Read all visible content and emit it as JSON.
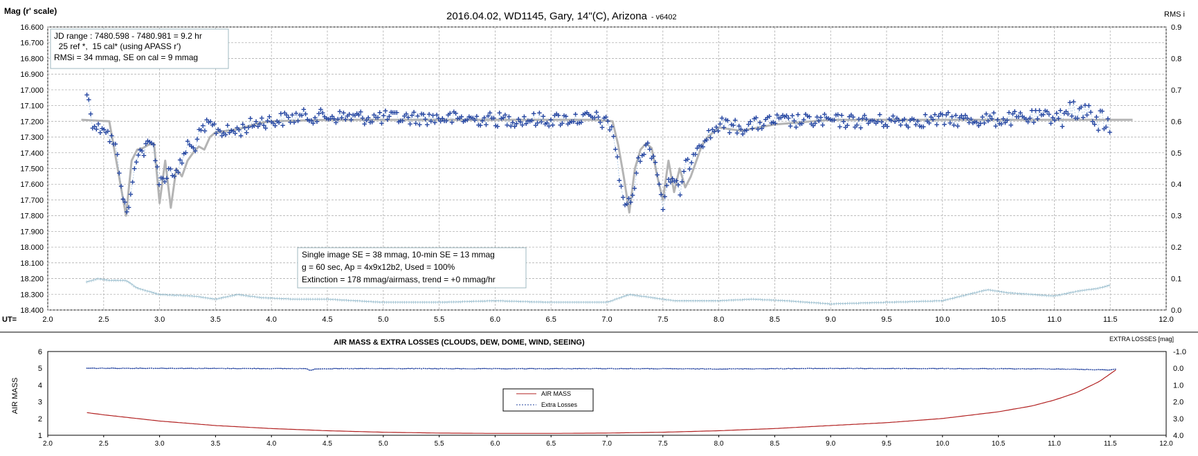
{
  "chart_data": [
    {
      "type": "scatter",
      "title": "2016.04.02,  WD1145, Gary, 14\"(C), Arizona",
      "version_tag": "- v6402",
      "ylabel": "Mag (r' scale)",
      "y2label": "RMS i",
      "xlabel": "UT=",
      "xlim": [
        2.0,
        12.0
      ],
      "ylim": [
        16.6,
        18.4
      ],
      "y_inverted": true,
      "y2lim": [
        0.0,
        0.9
      ],
      "grid": true,
      "xticks": [
        "2.0",
        "2.5",
        "3.0",
        "3.5",
        "4.0",
        "4.5",
        "5.0",
        "5.5",
        "6.0",
        "6.5",
        "7.0",
        "7.5",
        "8.0",
        "8.5",
        "9.0",
        "9.5",
        "10.0",
        "10.5",
        "11.0",
        "11.5",
        "12.0"
      ],
      "yticks": [
        "16.600",
        "16.700",
        "16.800",
        "16.900",
        "17.000",
        "17.100",
        "17.200",
        "17.300",
        "17.400",
        "17.500",
        "17.600",
        "17.700",
        "17.800",
        "17.900",
        "18.000",
        "18.100",
        "18.200",
        "18.300",
        "18.400"
      ],
      "y2ticks": [
        "0.9",
        "0.8",
        "0.7",
        "0.6",
        "0.5",
        "0.4",
        "0.3",
        "0.2",
        "0.1",
        "0.0"
      ],
      "info_box_top": [
        "JD range  : 7480.598 - 7480.981  = 9.2 hr",
        "  25 ref *,  15 cal* (using APASS r')",
        "RMSi = 34 mmag, SE on cal = 9 mmag"
      ],
      "info_box_bottom": [
        "Single image SE = 38 mmag, 10-min SE = 13 mmag",
        "g = 60 sec, Ap = 4x9x12b2, Used = 100%",
        "Extinction = 178 mmag/airmass, trend = +0 mmag/hr"
      ],
      "colors": {
        "data": "#1f3f9e",
        "model": "#b4b4b4",
        "rms": "#8fb7c9",
        "grid": "#b0b0b0"
      },
      "series": [
        {
          "role": "magnitude",
          "x": [
            2.35,
            2.4,
            2.45,
            2.5,
            2.55,
            2.6,
            2.65,
            2.7,
            2.75,
            2.8,
            2.85,
            2.9,
            2.95,
            3.0,
            3.05,
            3.1,
            3.15,
            3.2,
            3.25,
            3.3,
            3.35,
            3.4,
            3.45,
            3.5,
            3.6,
            3.7,
            3.8,
            3.9,
            4.0,
            4.25,
            4.5,
            5.0,
            5.5,
            6.0,
            6.5,
            6.9,
            7.05,
            7.12,
            7.17,
            7.22,
            7.3,
            7.38,
            7.45,
            7.5,
            7.55,
            7.6,
            7.65,
            7.7,
            7.75,
            7.8,
            7.9,
            8.0,
            8.2,
            8.5,
            9.0,
            9.5,
            10.0,
            10.5,
            11.0,
            11.3,
            11.5
          ],
          "y": [
            17.02,
            17.2,
            17.25,
            17.22,
            17.3,
            17.35,
            17.55,
            17.8,
            17.65,
            17.38,
            17.4,
            17.35,
            17.35,
            17.6,
            17.55,
            17.5,
            17.55,
            17.45,
            17.35,
            17.38,
            17.3,
            17.25,
            17.22,
            17.25,
            17.27,
            17.26,
            17.23,
            17.2,
            17.2,
            17.17,
            17.17,
            17.18,
            17.18,
            17.19,
            17.19,
            17.18,
            17.24,
            17.6,
            17.75,
            17.7,
            17.4,
            17.36,
            17.5,
            17.75,
            17.55,
            17.6,
            17.65,
            17.5,
            17.45,
            17.35,
            17.3,
            17.22,
            17.24,
            17.2,
            17.2,
            17.2,
            17.19,
            17.19,
            17.17,
            17.12,
            17.25
          ]
        },
        {
          "role": "model",
          "x": [
            2.3,
            2.55,
            2.6,
            2.65,
            2.7,
            2.75,
            2.8,
            2.85,
            2.9,
            2.95,
            3.0,
            3.05,
            3.1,
            3.15,
            3.2,
            3.25,
            3.3,
            3.35,
            3.4,
            3.45,
            3.5,
            3.6,
            3.7,
            3.8,
            3.9,
            4.0,
            4.5,
            5.0,
            6.0,
            6.5,
            6.9,
            7.05,
            7.1,
            7.15,
            7.2,
            7.25,
            7.3,
            7.35,
            7.4,
            7.45,
            7.5,
            7.55,
            7.6,
            7.65,
            7.7,
            7.75,
            7.8,
            7.85,
            7.9,
            8.0,
            8.2,
            8.5,
            9.0,
            10.0,
            11.0,
            11.7
          ],
          "y": [
            17.19,
            17.2,
            17.4,
            17.6,
            17.8,
            17.45,
            17.38,
            17.37,
            17.35,
            17.34,
            17.72,
            17.45,
            17.75,
            17.5,
            17.55,
            17.45,
            17.4,
            17.36,
            17.38,
            17.3,
            17.27,
            17.26,
            17.25,
            17.23,
            17.21,
            17.2,
            17.19,
            17.19,
            17.19,
            17.19,
            17.19,
            17.2,
            17.35,
            17.55,
            17.78,
            17.5,
            17.38,
            17.34,
            17.37,
            17.55,
            17.7,
            17.45,
            17.65,
            17.5,
            17.62,
            17.55,
            17.45,
            17.35,
            17.3,
            17.24,
            17.26,
            17.22,
            17.19,
            17.19,
            17.19,
            17.19
          ]
        },
        {
          "role": "rms",
          "x": [
            2.35,
            2.45,
            2.55,
            2.7,
            2.8,
            3.0,
            3.3,
            3.5,
            3.7,
            3.9,
            4.2,
            4.5,
            5.0,
            5.5,
            6.0,
            6.5,
            7.0,
            7.2,
            7.4,
            7.6,
            8.0,
            8.3,
            8.6,
            9.0,
            9.5,
            10.0,
            10.4,
            10.6,
            10.8,
            11.0,
            11.2,
            11.4,
            11.5
          ],
          "y": [
            0.09,
            0.1,
            0.095,
            0.095,
            0.07,
            0.05,
            0.045,
            0.035,
            0.05,
            0.04,
            0.035,
            0.035,
            0.025,
            0.025,
            0.03,
            0.025,
            0.025,
            0.05,
            0.04,
            0.03,
            0.03,
            0.035,
            0.03,
            0.02,
            0.025,
            0.03,
            0.065,
            0.055,
            0.05,
            0.045,
            0.06,
            0.07,
            0.08
          ]
        }
      ]
    },
    {
      "type": "line",
      "title": "AIR MASS & EXTRA LOSSES (CLOUDS, DEW, DOME, WIND, SEEING)",
      "ylabel": "AIR MASS",
      "y2label": "EXTRA LOSSES [mag]",
      "xlim": [
        2.0,
        12.0
      ],
      "ylim": [
        1,
        6
      ],
      "y2lim": [
        -1.0,
        4.0
      ],
      "xticks": [
        "2.0",
        "2.5",
        "3.0",
        "3.5",
        "4.0",
        "4.5",
        "5.0",
        "5.5",
        "6.0",
        "6.5",
        "7.0",
        "7.5",
        "8.0",
        "8.5",
        "9.0",
        "9.5",
        "10.0",
        "10.5",
        "11.0",
        "11.5",
        "12.0"
      ],
      "yticks": [
        "6",
        "5",
        "4",
        "3",
        "2",
        "1"
      ],
      "y2ticks": [
        "-1.0",
        "0.0",
        "1.0",
        "2.0",
        "3.0",
        "4.0"
      ],
      "legend_position": "center",
      "colors": {
        "air_mass": "#b22222",
        "extra_losses": "#1f3f9e"
      },
      "series": [
        {
          "name": "AIR MASS",
          "x": [
            2.35,
            2.5,
            3.0,
            3.5,
            4.0,
            4.5,
            5.0,
            5.5,
            6.0,
            6.5,
            7.0,
            7.5,
            8.0,
            8.5,
            9.0,
            9.5,
            10.0,
            10.5,
            10.8,
            11.0,
            11.2,
            11.4,
            11.55
          ],
          "y": [
            2.35,
            2.22,
            1.85,
            1.58,
            1.4,
            1.27,
            1.18,
            1.13,
            1.11,
            1.11,
            1.13,
            1.18,
            1.27,
            1.4,
            1.58,
            1.75,
            2.0,
            2.4,
            2.75,
            3.1,
            3.55,
            4.2,
            4.9
          ]
        },
        {
          "name": "Extra Losses",
          "x": [
            2.35,
            3.0,
            4.0,
            4.3,
            4.35,
            4.4,
            5.0,
            6.0,
            7.0,
            8.0,
            9.0,
            10.0,
            11.0,
            11.5,
            11.55
          ],
          "y": [
            0.0,
            0.0,
            0.02,
            0.02,
            0.12,
            0.03,
            0.02,
            0.03,
            0.02,
            0.04,
            0.01,
            0.02,
            0.04,
            0.1,
            0.05
          ]
        }
      ]
    }
  ]
}
